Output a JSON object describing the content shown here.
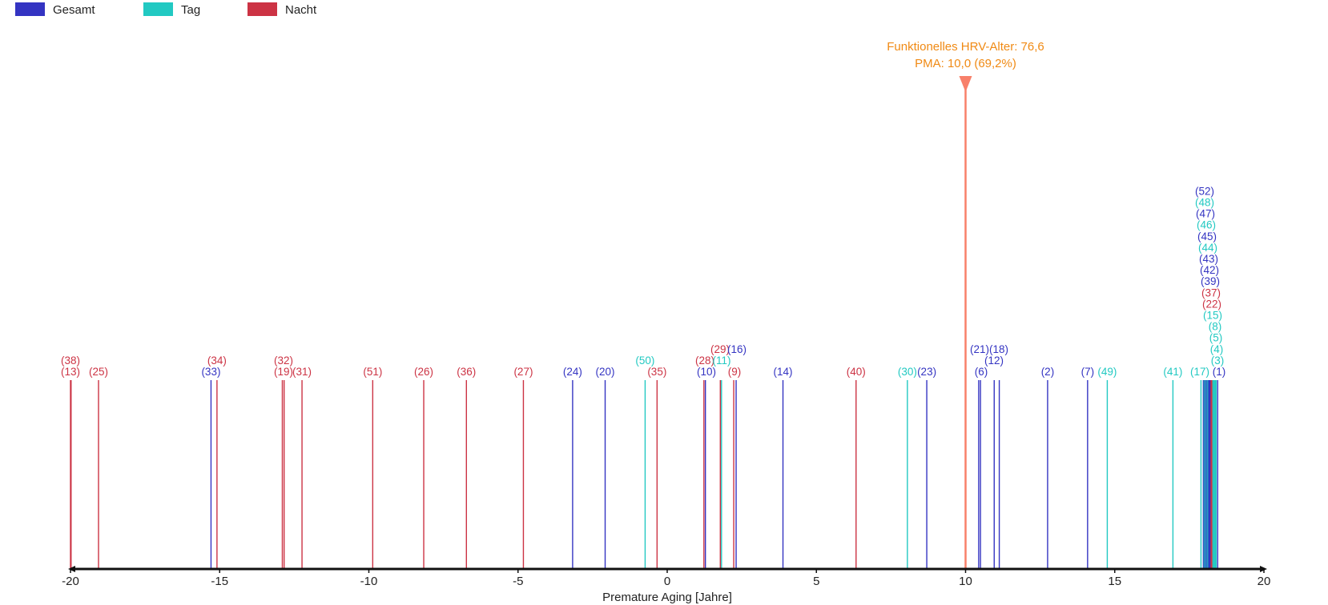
{
  "chart_data": {
    "type": "event-lines",
    "title": "",
    "xlabel": "Premature Aging [Jahre]",
    "ylabel": "",
    "xlim": [
      -20,
      20
    ],
    "xticks": [
      -20,
      -15,
      -10,
      -5,
      0,
      5,
      10,
      15,
      20
    ],
    "grid": false,
    "legend_position": "top-left",
    "legend": [
      {
        "name": "Gesamt",
        "color": "#3434c2"
      },
      {
        "name": "Tag",
        "color": "#22c9c2"
      },
      {
        "name": "Nacht",
        "color": "#cc3344"
      }
    ],
    "marker": {
      "value": 10.0,
      "color": "#f8806a",
      "text_color": "#f08a14",
      "line1": "Funktionelles HRV-Alter: 76,6",
      "line2": "PMA: 10,0 (69,2%)"
    },
    "points": [
      {
        "id": "(38)",
        "series": "Nacht",
        "x": -20.0
      },
      {
        "id": "(13)",
        "series": "Nacht",
        "x": -19.98
      },
      {
        "id": "(25)",
        "series": "Nacht",
        "x": -19.06
      },
      {
        "id": "(33)",
        "series": "Gesamt",
        "x": -15.29
      },
      {
        "id": "(34)",
        "series": "Nacht",
        "x": -15.09
      },
      {
        "id": "(32)",
        "series": "Nacht",
        "x": -12.9
      },
      {
        "id": "(19)",
        "series": "Nacht",
        "x": -12.84
      },
      {
        "id": "(31)",
        "series": "Nacht",
        "x": -12.24
      },
      {
        "id": "(51)",
        "series": "Nacht",
        "x": -9.87
      },
      {
        "id": "(26)",
        "series": "Nacht",
        "x": -8.16
      },
      {
        "id": "(36)",
        "series": "Nacht",
        "x": -6.73
      },
      {
        "id": "(27)",
        "series": "Nacht",
        "x": -4.82
      },
      {
        "id": "(24)",
        "series": "Gesamt",
        "x": -3.17
      },
      {
        "id": "(20)",
        "series": "Gesamt",
        "x": -2.08
      },
      {
        "id": "(50)",
        "series": "Tag",
        "x": -0.74
      },
      {
        "id": "(35)",
        "series": "Nacht",
        "x": -0.34
      },
      {
        "id": "(28)",
        "series": "Nacht",
        "x": 1.23
      },
      {
        "id": "(10)",
        "series": "Gesamt",
        "x": 1.28
      },
      {
        "id": "(29)",
        "series": "Nacht",
        "x": 1.78
      },
      {
        "id": "(11)",
        "series": "Tag",
        "x": 1.82
      },
      {
        "id": "(9)",
        "series": "Nacht",
        "x": 2.23
      },
      {
        "id": "(16)",
        "series": "Gesamt",
        "x": 2.31
      },
      {
        "id": "(14)",
        "series": "Gesamt",
        "x": 3.88
      },
      {
        "id": "(40)",
        "series": "Nacht",
        "x": 6.33
      },
      {
        "id": "(30)",
        "series": "Tag",
        "x": 8.05
      },
      {
        "id": "(23)",
        "series": "Gesamt",
        "x": 8.7
      },
      {
        "id": "(6)",
        "series": "Gesamt",
        "x": 10.44
      },
      {
        "id": "(21)",
        "series": "Gesamt",
        "x": 10.5
      },
      {
        "id": "(12)",
        "series": "Gesamt",
        "x": 10.96
      },
      {
        "id": "(18)",
        "series": "Gesamt",
        "x": 11.13
      },
      {
        "id": "(2)",
        "series": "Gesamt",
        "x": 12.75
      },
      {
        "id": "(7)",
        "series": "Gesamt",
        "x": 14.09
      },
      {
        "id": "(49)",
        "series": "Tag",
        "x": 14.75
      },
      {
        "id": "(41)",
        "series": "Tag",
        "x": 16.95
      },
      {
        "id": "(17)",
        "series": "Tag",
        "x": 17.89
      },
      {
        "id": "(52)",
        "series": "Gesamt",
        "x": 17.97
      },
      {
        "id": "(48)",
        "series": "Tag",
        "x": 18.0
      },
      {
        "id": "(47)",
        "series": "Gesamt",
        "x": 18.03
      },
      {
        "id": "(46)",
        "series": "Tag",
        "x": 18.06
      },
      {
        "id": "(45)",
        "series": "Gesamt",
        "x": 18.09
      },
      {
        "id": "(44)",
        "series": "Tag",
        "x": 18.12
      },
      {
        "id": "(43)",
        "series": "Gesamt",
        "x": 18.15
      },
      {
        "id": "(42)",
        "series": "Gesamt",
        "x": 18.17
      },
      {
        "id": "(39)",
        "series": "Gesamt",
        "x": 18.2
      },
      {
        "id": "(37)",
        "series": "Nacht",
        "x": 18.23
      },
      {
        "id": "(22)",
        "series": "Nacht",
        "x": 18.26
      },
      {
        "id": "(15)",
        "series": "Tag",
        "x": 18.29
      },
      {
        "id": "(8)",
        "series": "Tag",
        "x": 18.31
      },
      {
        "id": "(5)",
        "series": "Tag",
        "x": 18.34
      },
      {
        "id": "(4)",
        "series": "Tag",
        "x": 18.37
      },
      {
        "id": "(3)",
        "series": "Tag",
        "x": 18.4
      },
      {
        "id": "(1)",
        "series": "Gesamt",
        "x": 18.45
      }
    ]
  }
}
